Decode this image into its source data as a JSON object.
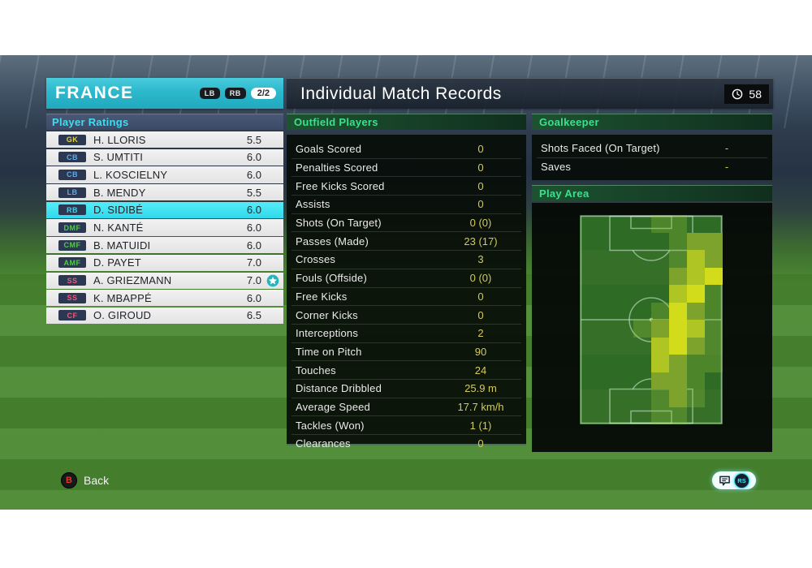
{
  "team_panel": {
    "team_name": "FRANCE",
    "badges": [
      "LB",
      "RB"
    ],
    "page_indicator": "2/2",
    "section_title": "Player Ratings",
    "players": [
      {
        "pos": "GK",
        "pos_color": "#e3d43f",
        "name": "H. LLORIS",
        "rating": "5.5",
        "selected": false,
        "man_of_match": false
      },
      {
        "pos": "CB",
        "pos_color": "#5caae8",
        "name": "S. UMTITI",
        "rating": "6.0",
        "selected": false,
        "man_of_match": false
      },
      {
        "pos": "CB",
        "pos_color": "#5caae8",
        "name": "L. KOSCIELNY",
        "rating": "6.0",
        "selected": false,
        "man_of_match": false
      },
      {
        "pos": "LB",
        "pos_color": "#5caae8",
        "name": "B. MENDY",
        "rating": "5.5",
        "selected": false,
        "man_of_match": false
      },
      {
        "pos": "RB",
        "pos_color": "#45d2ec",
        "name": "D. SIDIBÉ",
        "rating": "6.0",
        "selected": true,
        "man_of_match": false
      },
      {
        "pos": "DMF",
        "pos_color": "#52c84f",
        "name": "N. KANTÉ",
        "rating": "6.0",
        "selected": false,
        "man_of_match": false
      },
      {
        "pos": "CMF",
        "pos_color": "#52c84f",
        "name": "B. MATUIDI",
        "rating": "6.0",
        "selected": false,
        "man_of_match": false
      },
      {
        "pos": "AMF",
        "pos_color": "#52c84f",
        "name": "D. PAYET",
        "rating": "7.0",
        "selected": false,
        "man_of_match": false
      },
      {
        "pos": "SS",
        "pos_color": "#ef587a",
        "name": "A. GRIEZMANN",
        "rating": "7.0",
        "selected": false,
        "man_of_match": true
      },
      {
        "pos": "SS",
        "pos_color": "#ef587a",
        "name": "K. MBAPPÉ",
        "rating": "6.0",
        "selected": false,
        "man_of_match": false
      },
      {
        "pos": "CF",
        "pos_color": "#ef587a",
        "name": "O. GIROUD",
        "rating": "6.5",
        "selected": false,
        "man_of_match": false
      }
    ]
  },
  "records": {
    "title": "Individual Match Records",
    "clock": "58",
    "outfield_title": "Outfield Players",
    "outfield_stats": [
      {
        "label": "Goals Scored",
        "value": "0"
      },
      {
        "label": "Penalties Scored",
        "value": "0"
      },
      {
        "label": "Free Kicks Scored",
        "value": "0"
      },
      {
        "label": "Assists",
        "value": "0"
      },
      {
        "label": "Shots (On Target)",
        "value": "0 (0)"
      },
      {
        "label": "Passes (Made)",
        "value": "23 (17)"
      },
      {
        "label": "Crosses",
        "value": "3"
      },
      {
        "label": "Fouls (Offside)",
        "value": "0 (0)"
      },
      {
        "label": "Free Kicks",
        "value": "0"
      },
      {
        "label": "Corner Kicks",
        "value": "0"
      },
      {
        "label": "Interceptions",
        "value": "2"
      },
      {
        "label": "Time on Pitch",
        "value": "90"
      },
      {
        "label": "Touches",
        "value": "24"
      },
      {
        "label": "Distance Dribbled",
        "value": "25.9 m"
      },
      {
        "label": "Average Speed",
        "value": "17.7 km/h"
      },
      {
        "label": "Tackles (Won)",
        "value": "1 (1)"
      },
      {
        "label": "Clearances",
        "value": "0"
      }
    ],
    "goalkeeper_title": "Goalkeeper",
    "goalkeeper_stats": [
      {
        "label": "Shots Faced (On Target)",
        "value": "-"
      },
      {
        "label": "Saves",
        "value": "-"
      }
    ],
    "play_area_title": "Play Area"
  },
  "heatmap": {
    "cols": 8,
    "rows": 12,
    "level_colors": [
      "transparent",
      "rgba(150,195,60,0.30)",
      "#7da32d",
      "#aec523",
      "#d3dc1a"
    ],
    "grid": [
      [
        0,
        0,
        0,
        0,
        1,
        1,
        0,
        0
      ],
      [
        0,
        0,
        0,
        0,
        0,
        1,
        2,
        2
      ],
      [
        0,
        0,
        0,
        0,
        0,
        1,
        3,
        2
      ],
      [
        0,
        0,
        0,
        0,
        0,
        2,
        3,
        4
      ],
      [
        0,
        0,
        0,
        0,
        0,
        3,
        4,
        1
      ],
      [
        0,
        0,
        0,
        0,
        1,
        4,
        2,
        1
      ],
      [
        0,
        0,
        0,
        1,
        2,
        4,
        3,
        1
      ],
      [
        0,
        0,
        0,
        0,
        3,
        4,
        2,
        1
      ],
      [
        0,
        0,
        0,
        0,
        3,
        2,
        1,
        1
      ],
      [
        0,
        0,
        0,
        0,
        2,
        2,
        1,
        0
      ],
      [
        0,
        0,
        0,
        0,
        1,
        2,
        1,
        0
      ],
      [
        0,
        0,
        0,
        0,
        1,
        1,
        0,
        0
      ]
    ]
  },
  "footer": {
    "back_glyph": "B",
    "back_label": "Back",
    "stick_label": "RS"
  },
  "colors": {
    "accent_cyan": "#2fbccf",
    "selected_row": "#3be2f2",
    "section_green": "#3be08d",
    "value_yellow": "#d2cb5e"
  }
}
